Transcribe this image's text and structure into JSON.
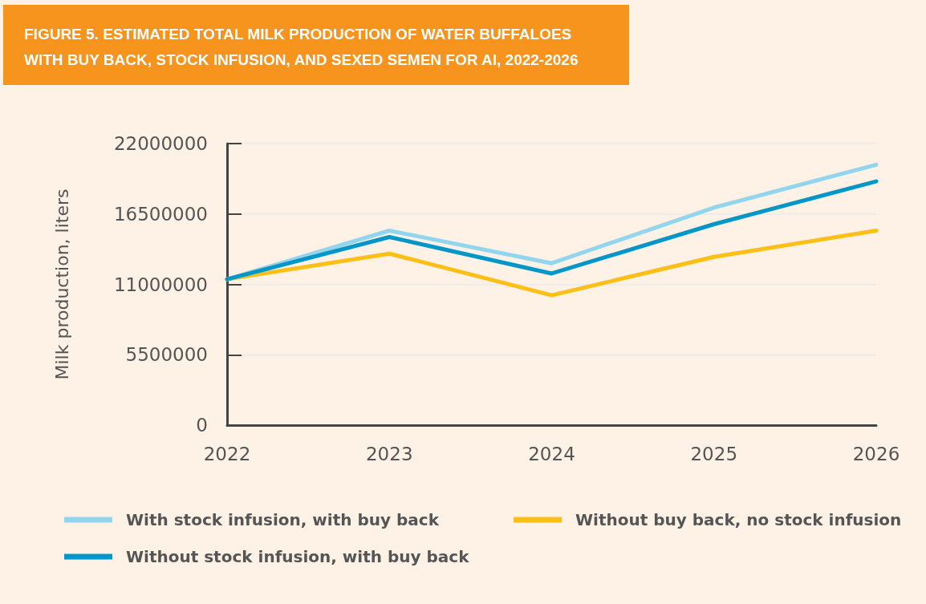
{
  "chart_data": {
    "type": "line",
    "title": "FIGURE 5. ESTIMATED TOTAL MILK PRODUCTION OF WATER BUFFALOES WITH BUY BACK, STOCK INFUSION, AND SEXED SEMEN FOR AI, 2022-2026",
    "ylabel": "Milk production, liters",
    "categories": [
      "2022",
      "2023",
      "2024",
      "2025",
      "2026"
    ],
    "series": [
      {
        "name": "With stock infusion, with buy back",
        "color": "#92d5ee",
        "values": [
          11400000,
          15200000,
          12650000,
          17000000,
          20350000
        ]
      },
      {
        "name": "Without buy back, no stock infusion",
        "color": "#fdbf16",
        "values": [
          11400000,
          13400000,
          10150000,
          13150000,
          15200000
        ]
      },
      {
        "name": "Without stock infusion, with buy back",
        "color": "#0396c9",
        "values": [
          11400000,
          14700000,
          11850000,
          15700000,
          19050000
        ]
      }
    ],
    "ylim": [
      0,
      22000000
    ],
    "yticks": [
      0,
      5500000,
      11000000,
      16500000,
      22000000
    ],
    "grid": "y",
    "legend": "bottom",
    "marker": "none",
    "line_style": "solid"
  }
}
